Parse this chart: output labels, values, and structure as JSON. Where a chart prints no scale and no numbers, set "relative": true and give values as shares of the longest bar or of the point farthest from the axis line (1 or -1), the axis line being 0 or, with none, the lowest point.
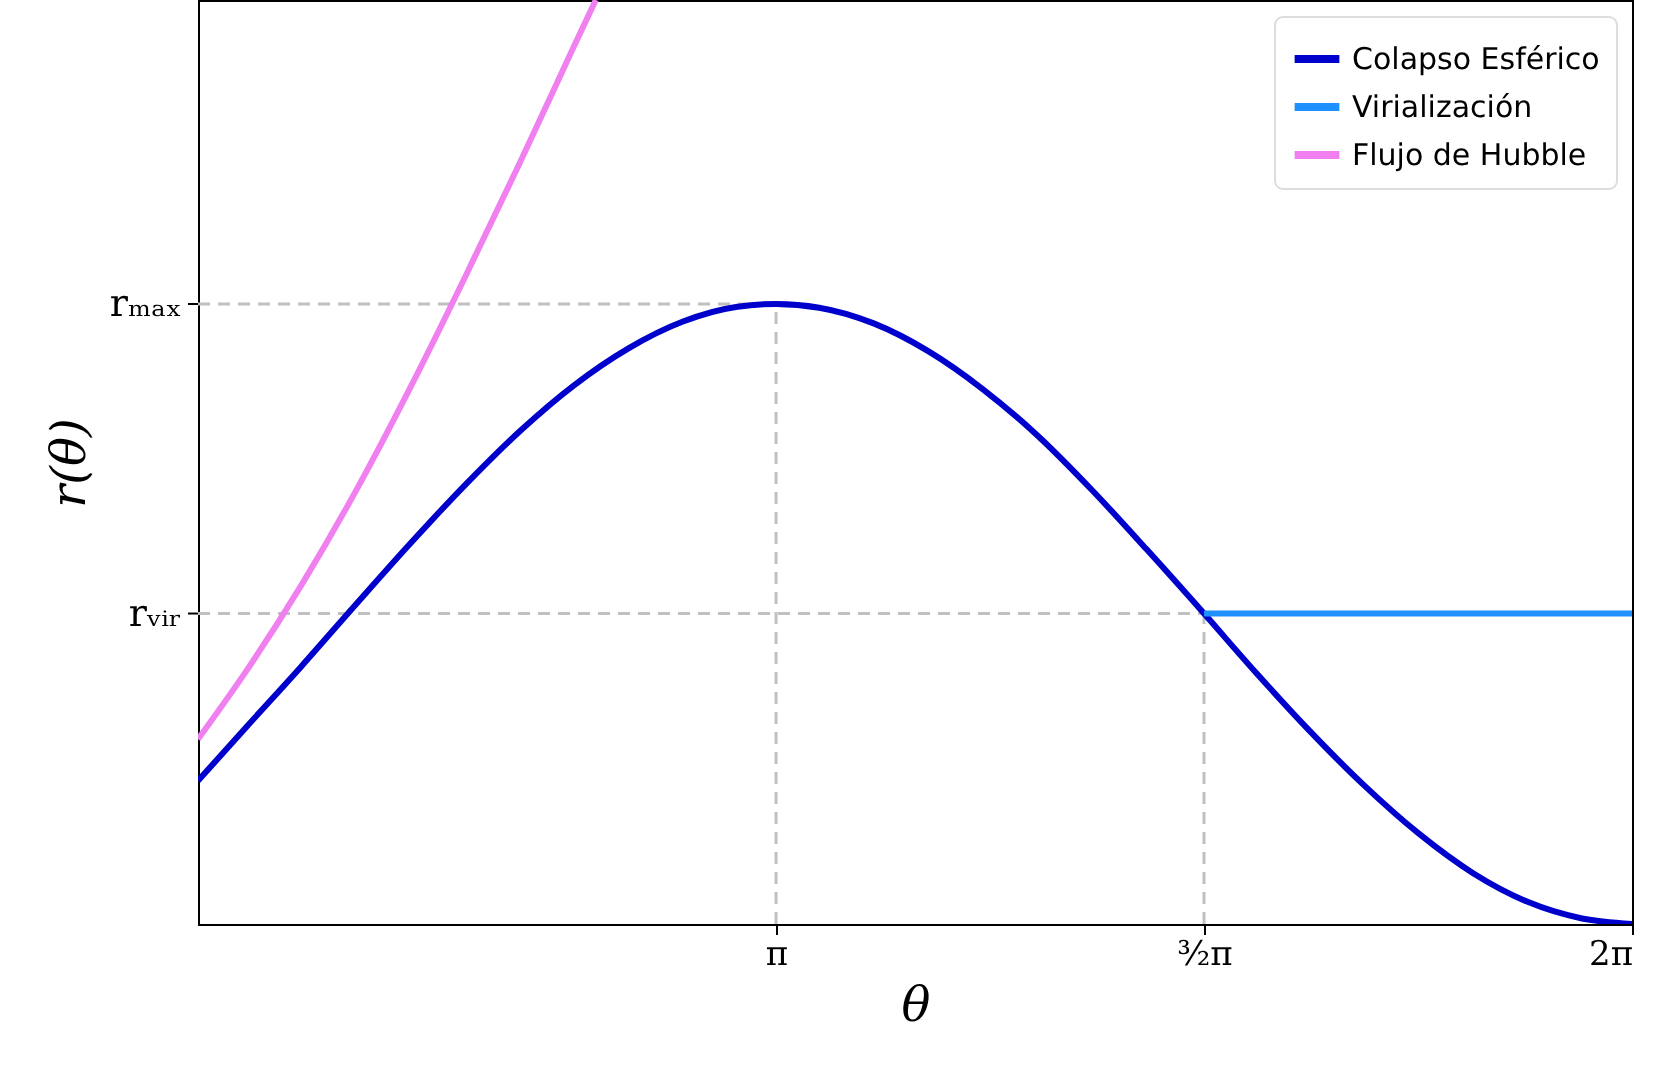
{
  "chart_data": {
    "type": "line",
    "xlabel": "θ",
    "ylabel": "r(θ)",
    "relative": true,
    "xlim": [
      1.02,
      6.2832
    ],
    "xticks": [
      {
        "value": 3.1416,
        "label": "π"
      },
      {
        "value": 4.7124,
        "label": "³⁄₂π"
      },
      {
        "value": 6.2832,
        "label": "2π"
      }
    ],
    "grid": false,
    "legend": "top right",
    "marker": "none",
    "line_style": "solid",
    "series": [
      {
        "name": "Colapso Esférico",
        "color": "#0000cc",
        "x": [
          1.02,
          1.2,
          1.4,
          1.6,
          1.8,
          2.0,
          2.2,
          2.4,
          2.6,
          2.8,
          3.0,
          3.1416,
          3.3,
          3.5,
          3.7,
          3.9,
          4.1,
          4.3,
          4.5,
          4.7124,
          4.9,
          5.1,
          5.3,
          5.5,
          5.7,
          5.9,
          6.1,
          6.2832
        ],
        "values": [
          0.155,
          0.214,
          0.279,
          0.346,
          0.412,
          0.475,
          0.533,
          0.583,
          0.623,
          0.652,
          0.668,
          0.671,
          0.667,
          0.65,
          0.62,
          0.579,
          0.529,
          0.47,
          0.406,
          0.336,
          0.273,
          0.209,
          0.15,
          0.098,
          0.055,
          0.024,
          0.006,
          0.0
        ]
      },
      {
        "name": "Virialización",
        "color": "#1e90ff",
        "x": [
          4.7124,
          6.2832
        ],
        "values": [
          0.336,
          0.336
        ]
      },
      {
        "name": "Flujo de Hubble",
        "color": "#f080f0",
        "x": [
          1.02,
          1.2,
          1.4,
          1.6,
          1.8,
          2.0,
          2.2,
          2.4,
          2.48
        ],
        "values": [
          0.2,
          0.275,
          0.367,
          0.469,
          0.581,
          0.7,
          0.823,
          0.95,
          1.0
        ]
      }
    ],
    "ref_lines": [
      {
        "axis": "x",
        "value": 3.1416,
        "color": "#c0c0c0",
        "line_style": "dashed"
      },
      {
        "axis": "y",
        "value": 0.671,
        "label": "rₘₐₓ",
        "color": "#c0c0c0",
        "line_style": "dashed"
      },
      {
        "axis": "x",
        "value": 4.7124,
        "color": "#c0c0c0",
        "line_style": "dashed"
      },
      {
        "axis": "y",
        "value": 0.336,
        "label": "rᵥᵢᵣ",
        "color": "#c0c0c0",
        "line_style": "dashed"
      }
    ]
  }
}
